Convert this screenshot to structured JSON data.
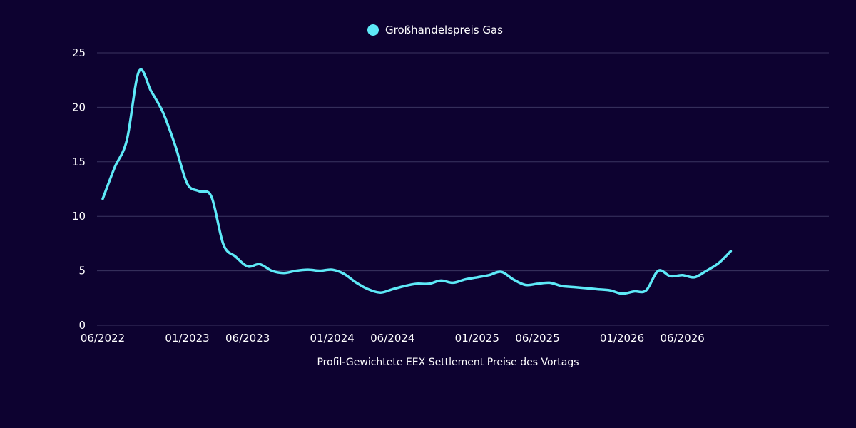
{
  "chart_data": {
    "type": "line",
    "title": "",
    "xlabel": "Profil-Gewichtete EEX Settlement Preise des Vortags",
    "ylabel": "",
    "ylim": [
      0,
      25
    ],
    "yticks": [
      0,
      5,
      10,
      15,
      20,
      25
    ],
    "grid": true,
    "legend_position": "top-center",
    "x_tick_labels": [
      "06/2022",
      "01/2023",
      "06/2023",
      "01/2024",
      "06/2024",
      "01/2025",
      "06/2025",
      "01/2026",
      "06/2026"
    ],
    "x_tick_dates": [
      "2022-06",
      "2023-01",
      "2023-06",
      "2024-01",
      "2024-06",
      "2025-01",
      "2025-06",
      "2026-01",
      "2026-06"
    ],
    "series": [
      {
        "name": "Großhandelspreis Gas",
        "color": "#5ee9f7",
        "points": [
          [
            "2022-06",
            11.6
          ],
          [
            "2022-07",
            14.5
          ],
          [
            "2022-08",
            17.0
          ],
          [
            "2022-09",
            23.3
          ],
          [
            "2022-10",
            21.5
          ],
          [
            "2022-11",
            19.5
          ],
          [
            "2022-12",
            16.5
          ],
          [
            "2023-01",
            13.0
          ],
          [
            "2023-02",
            12.3
          ],
          [
            "2023-03",
            11.8
          ],
          [
            "2023-04",
            7.4
          ],
          [
            "2023-05",
            6.3
          ],
          [
            "2023-06",
            5.4
          ],
          [
            "2023-07",
            5.6
          ],
          [
            "2023-08",
            5.0
          ],
          [
            "2023-09",
            4.8
          ],
          [
            "2023-10",
            5.0
          ],
          [
            "2023-11",
            5.1
          ],
          [
            "2023-12",
            5.0
          ],
          [
            "2024-01",
            5.1
          ],
          [
            "2024-02",
            4.7
          ],
          [
            "2024-03",
            3.9
          ],
          [
            "2024-04",
            3.3
          ],
          [
            "2024-05",
            3.0
          ],
          [
            "2024-06",
            3.3
          ],
          [
            "2024-07",
            3.6
          ],
          [
            "2024-08",
            3.8
          ],
          [
            "2024-09",
            3.8
          ],
          [
            "2024-10",
            4.1
          ],
          [
            "2024-11",
            3.9
          ],
          [
            "2024-12",
            4.2
          ],
          [
            "2025-01",
            4.4
          ],
          [
            "2025-02",
            4.6
          ],
          [
            "2025-03",
            4.9
          ],
          [
            "2025-04",
            4.2
          ],
          [
            "2025-05",
            3.7
          ],
          [
            "2025-06",
            3.8
          ],
          [
            "2025-07",
            3.9
          ],
          [
            "2025-08",
            3.6
          ],
          [
            "2025-09",
            3.5
          ],
          [
            "2025-10",
            3.4
          ],
          [
            "2025-11",
            3.3
          ],
          [
            "2025-12",
            3.2
          ],
          [
            "2026-01",
            2.9
          ],
          [
            "2026-02",
            3.1
          ],
          [
            "2026-03",
            3.2
          ],
          [
            "2026-04",
            5.0
          ],
          [
            "2026-05",
            4.5
          ],
          [
            "2026-06",
            4.6
          ],
          [
            "2026-07",
            4.4
          ],
          [
            "2026-08",
            5.0
          ],
          [
            "2026-09",
            5.7
          ],
          [
            "2026-10",
            6.8
          ]
        ]
      }
    ]
  }
}
